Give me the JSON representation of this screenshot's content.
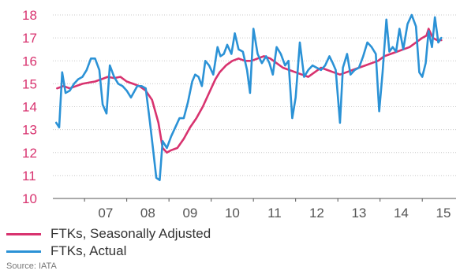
{
  "colors": {
    "seasonally_adjusted": "#d8336f",
    "actual": "#2b92d6",
    "y_tick_text": "#d8336f",
    "x_tick_text": "#555555",
    "grid": "#c8c8c8",
    "axis": "#555555"
  },
  "legend": {
    "seasonally_adjusted": "FTKs, Seasonally Adjusted",
    "actual": "FTKs, Actual"
  },
  "source": "Source: IATA",
  "chart_data": {
    "type": "line",
    "title": "",
    "xlabel": "",
    "ylabel": "",
    "ylim": [
      10,
      18
    ],
    "y_ticks": [
      10,
      11,
      12,
      13,
      14,
      15,
      16,
      17,
      18
    ],
    "xlim": [
      2006.25,
      2015.8
    ],
    "x_ticks": [
      {
        "label": "07",
        "year": 2007
      },
      {
        "label": "08",
        "year": 2008
      },
      {
        "label": "09",
        "year": 2009
      },
      {
        "label": "10",
        "year": 2010
      },
      {
        "label": "11",
        "year": 2011
      },
      {
        "label": "12",
        "year": 2012
      },
      {
        "label": "13",
        "year": 2013
      },
      {
        "label": "14",
        "year": 2014
      },
      {
        "label": "15",
        "year": 2015
      }
    ],
    "grid": true,
    "legend_position": "bottom-left",
    "series": [
      {
        "name": "FTKs, Seasonally Adjusted",
        "key": "seasonally_adjusted",
        "points": [
          [
            2006.35,
            14.8
          ],
          [
            2006.5,
            14.9
          ],
          [
            2006.65,
            14.8
          ],
          [
            2006.8,
            14.9
          ],
          [
            2006.95,
            15.0
          ],
          [
            2007.1,
            15.05
          ],
          [
            2007.25,
            15.1
          ],
          [
            2007.4,
            15.2
          ],
          [
            2007.55,
            15.3
          ],
          [
            2007.7,
            15.25
          ],
          [
            2007.85,
            15.3
          ],
          [
            2008.0,
            15.1
          ],
          [
            2008.15,
            15.0
          ],
          [
            2008.3,
            14.9
          ],
          [
            2008.45,
            14.7
          ],
          [
            2008.6,
            14.3
          ],
          [
            2008.75,
            13.3
          ],
          [
            2008.85,
            12.2
          ],
          [
            2008.95,
            12.0
          ],
          [
            2009.05,
            12.1
          ],
          [
            2009.2,
            12.2
          ],
          [
            2009.35,
            12.6
          ],
          [
            2009.5,
            13.1
          ],
          [
            2009.65,
            13.5
          ],
          [
            2009.8,
            14.0
          ],
          [
            2009.95,
            14.6
          ],
          [
            2010.1,
            15.2
          ],
          [
            2010.2,
            15.5
          ],
          [
            2010.35,
            15.8
          ],
          [
            2010.5,
            16.0
          ],
          [
            2010.65,
            16.1
          ],
          [
            2010.8,
            16.0
          ],
          [
            2010.95,
            16.0
          ],
          [
            2011.1,
            16.1
          ],
          [
            2011.25,
            16.2
          ],
          [
            2011.4,
            16.1
          ],
          [
            2011.55,
            15.9
          ],
          [
            2011.7,
            15.7
          ],
          [
            2011.85,
            15.6
          ],
          [
            2012.0,
            15.5
          ],
          [
            2012.15,
            15.4
          ],
          [
            2012.3,
            15.3
          ],
          [
            2012.45,
            15.5
          ],
          [
            2012.6,
            15.7
          ],
          [
            2012.75,
            15.6
          ],
          [
            2012.9,
            15.5
          ],
          [
            2013.05,
            15.4
          ],
          [
            2013.2,
            15.5
          ],
          [
            2013.35,
            15.6
          ],
          [
            2013.5,
            15.7
          ],
          [
            2013.65,
            15.8
          ],
          [
            2013.8,
            15.9
          ],
          [
            2013.95,
            16.0
          ],
          [
            2014.1,
            16.2
          ],
          [
            2014.25,
            16.3
          ],
          [
            2014.4,
            16.4
          ],
          [
            2014.55,
            16.5
          ],
          [
            2014.7,
            16.6
          ],
          [
            2014.85,
            16.8
          ],
          [
            2015.0,
            17.0
          ],
          [
            2015.1,
            17.1
          ],
          [
            2015.15,
            17.4
          ],
          [
            2015.25,
            17.0
          ],
          [
            2015.35,
            16.9
          ],
          [
            2015.45,
            16.9
          ]
        ]
      },
      {
        "name": "FTKs, Actual",
        "key": "actual",
        "points": [
          [
            2006.33,
            13.3
          ],
          [
            2006.4,
            13.1
          ],
          [
            2006.47,
            15.5
          ],
          [
            2006.55,
            14.6
          ],
          [
            2006.65,
            14.7
          ],
          [
            2006.75,
            15.0
          ],
          [
            2006.85,
            15.2
          ],
          [
            2006.95,
            15.3
          ],
          [
            2007.05,
            15.6
          ],
          [
            2007.15,
            16.1
          ],
          [
            2007.25,
            16.1
          ],
          [
            2007.35,
            15.6
          ],
          [
            2007.43,
            14.1
          ],
          [
            2007.52,
            13.7
          ],
          [
            2007.6,
            15.8
          ],
          [
            2007.7,
            15.3
          ],
          [
            2007.8,
            15.0
          ],
          [
            2007.9,
            14.9
          ],
          [
            2008.0,
            14.7
          ],
          [
            2008.1,
            14.4
          ],
          [
            2008.25,
            14.9
          ],
          [
            2008.35,
            14.9
          ],
          [
            2008.45,
            14.8
          ],
          [
            2008.55,
            13.3
          ],
          [
            2008.62,
            12.2
          ],
          [
            2008.7,
            10.9
          ],
          [
            2008.78,
            10.8
          ],
          [
            2008.85,
            12.5
          ],
          [
            2008.95,
            12.2
          ],
          [
            2009.05,
            12.7
          ],
          [
            2009.15,
            13.1
          ],
          [
            2009.25,
            13.5
          ],
          [
            2009.35,
            13.5
          ],
          [
            2009.45,
            14.2
          ],
          [
            2009.55,
            15.1
          ],
          [
            2009.62,
            15.4
          ],
          [
            2009.7,
            15.3
          ],
          [
            2009.78,
            14.9
          ],
          [
            2009.86,
            16.0
          ],
          [
            2009.95,
            15.8
          ],
          [
            2010.05,
            15.4
          ],
          [
            2010.15,
            16.6
          ],
          [
            2010.22,
            16.2
          ],
          [
            2010.3,
            16.3
          ],
          [
            2010.38,
            16.7
          ],
          [
            2010.48,
            16.3
          ],
          [
            2010.56,
            17.2
          ],
          [
            2010.65,
            16.5
          ],
          [
            2010.75,
            16.4
          ],
          [
            2010.85,
            15.6
          ],
          [
            2010.92,
            14.6
          ],
          [
            2011.0,
            17.4
          ],
          [
            2011.1,
            16.3
          ],
          [
            2011.2,
            15.9
          ],
          [
            2011.3,
            16.2
          ],
          [
            2011.38,
            15.9
          ],
          [
            2011.46,
            15.4
          ],
          [
            2011.55,
            16.6
          ],
          [
            2011.65,
            16.3
          ],
          [
            2011.75,
            15.8
          ],
          [
            2011.83,
            16.0
          ],
          [
            2011.92,
            13.5
          ],
          [
            2012.0,
            14.4
          ],
          [
            2012.1,
            16.8
          ],
          [
            2012.2,
            15.3
          ],
          [
            2012.3,
            15.6
          ],
          [
            2012.4,
            15.8
          ],
          [
            2012.5,
            15.7
          ],
          [
            2012.6,
            15.6
          ],
          [
            2012.7,
            15.8
          ],
          [
            2012.8,
            16.2
          ],
          [
            2012.88,
            15.9
          ],
          [
            2012.95,
            15.6
          ],
          [
            2013.05,
            13.3
          ],
          [
            2013.12,
            15.7
          ],
          [
            2013.22,
            16.3
          ],
          [
            2013.3,
            15.4
          ],
          [
            2013.4,
            15.6
          ],
          [
            2013.5,
            15.7
          ],
          [
            2013.6,
            16.2
          ],
          [
            2013.7,
            16.8
          ],
          [
            2013.8,
            16.6
          ],
          [
            2013.9,
            16.3
          ],
          [
            2013.98,
            13.8
          ],
          [
            2014.06,
            15.5
          ],
          [
            2014.15,
            17.8
          ],
          [
            2014.22,
            16.4
          ],
          [
            2014.3,
            16.6
          ],
          [
            2014.38,
            16.4
          ],
          [
            2014.46,
            17.4
          ],
          [
            2014.55,
            16.5
          ],
          [
            2014.65,
            17.6
          ],
          [
            2014.75,
            18.0
          ],
          [
            2014.85,
            17.5
          ],
          [
            2014.93,
            15.5
          ],
          [
            2015.0,
            15.3
          ],
          [
            2015.08,
            15.9
          ],
          [
            2015.15,
            17.3
          ],
          [
            2015.23,
            16.6
          ],
          [
            2015.3,
            17.9
          ],
          [
            2015.38,
            16.8
          ],
          [
            2015.45,
            17.0
          ]
        ]
      }
    ]
  }
}
